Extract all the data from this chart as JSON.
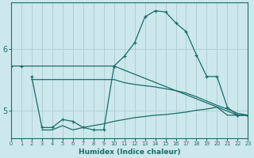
{
  "xlabel": "Humidex (Indice chaleur)",
  "bg_color": "#cce8ec",
  "grid_color": "#b0ced4",
  "line_color": "#1a6b6b",
  "xlim": [
    0,
    23
  ],
  "ylim": [
    4.55,
    6.75
  ],
  "yticks": [
    5,
    6
  ],
  "xticks": [
    0,
    1,
    2,
    3,
    4,
    5,
    6,
    7,
    8,
    9,
    10,
    11,
    12,
    13,
    14,
    15,
    16,
    17,
    18,
    19,
    20,
    21,
    22,
    23
  ],
  "series": [
    {
      "x": [
        0,
        1,
        10,
        22,
        23
      ],
      "y": [
        5.72,
        5.72,
        5.72,
        4.92,
        4.92
      ],
      "marker": true
    },
    {
      "x": [
        2,
        3,
        4,
        5,
        6,
        7,
        8,
        9,
        10,
        11,
        12,
        13,
        14,
        15,
        16,
        17,
        18,
        19,
        20,
        21,
        22,
        23
      ],
      "y": [
        5.55,
        4.72,
        4.72,
        4.85,
        4.82,
        4.72,
        4.68,
        4.68,
        5.72,
        5.88,
        6.1,
        6.52,
        6.62,
        6.6,
        6.42,
        6.28,
        5.9,
        5.55,
        5.55,
        5.05,
        4.92,
        4.92
      ],
      "marker": true
    },
    {
      "x": [
        2,
        3,
        4,
        5,
        6,
        7,
        8,
        9,
        10,
        11,
        12,
        13,
        14,
        15,
        16,
        17,
        18,
        19,
        20,
        21,
        22,
        23
      ],
      "y": [
        5.5,
        5.5,
        5.5,
        5.5,
        5.5,
        5.5,
        5.5,
        5.5,
        5.5,
        5.45,
        5.42,
        5.4,
        5.38,
        5.35,
        5.32,
        5.28,
        5.22,
        5.15,
        5.08,
        5.02,
        4.95,
        4.92
      ],
      "marker": false
    },
    {
      "x": [
        3,
        4,
        5,
        6,
        7,
        8,
        9,
        10,
        11,
        12,
        13,
        14,
        15,
        16,
        17,
        18,
        19,
        20,
        21,
        22,
        23
      ],
      "y": [
        4.68,
        4.68,
        4.75,
        4.68,
        4.72,
        4.75,
        4.78,
        4.82,
        4.85,
        4.88,
        4.9,
        4.92,
        4.93,
        4.95,
        4.97,
        5.0,
        5.02,
        5.05,
        4.92,
        4.92,
        4.92
      ],
      "marker": false
    }
  ]
}
